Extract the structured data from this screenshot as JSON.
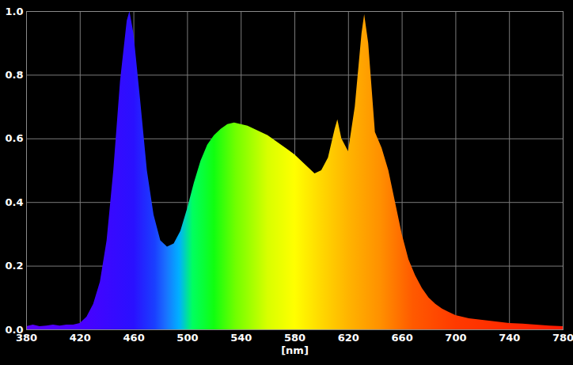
{
  "chart_data": {
    "type": "area",
    "x_label": "[nm]",
    "x": [
      380,
      385,
      390,
      395,
      400,
      405,
      410,
      415,
      420,
      425,
      430,
      435,
      440,
      445,
      450,
      455,
      457,
      460,
      465,
      470,
      475,
      480,
      485,
      490,
      495,
      500,
      505,
      510,
      515,
      520,
      525,
      530,
      535,
      540,
      545,
      550,
      555,
      560,
      565,
      570,
      575,
      580,
      585,
      590,
      595,
      600,
      605,
      610,
      612,
      615,
      620,
      625,
      630,
      632,
      635,
      640,
      645,
      650,
      655,
      660,
      665,
      670,
      675,
      680,
      685,
      690,
      695,
      700,
      710,
      720,
      730,
      740,
      750,
      760,
      770,
      780
    ],
    "values": [
      0.01,
      0.015,
      0.01,
      0.012,
      0.015,
      0.012,
      0.015,
      0.015,
      0.02,
      0.04,
      0.08,
      0.15,
      0.28,
      0.5,
      0.78,
      0.97,
      1.0,
      0.93,
      0.72,
      0.5,
      0.36,
      0.28,
      0.26,
      0.27,
      0.31,
      0.38,
      0.46,
      0.53,
      0.58,
      0.61,
      0.63,
      0.645,
      0.65,
      0.645,
      0.64,
      0.63,
      0.62,
      0.61,
      0.595,
      0.58,
      0.565,
      0.55,
      0.53,
      0.51,
      0.49,
      0.5,
      0.54,
      0.63,
      0.66,
      0.6,
      0.56,
      0.7,
      0.93,
      0.99,
      0.9,
      0.62,
      0.57,
      0.5,
      0.4,
      0.3,
      0.22,
      0.17,
      0.13,
      0.1,
      0.08,
      0.065,
      0.055,
      0.045,
      0.035,
      0.03,
      0.025,
      0.02,
      0.018,
      0.015,
      0.012,
      0.01
    ],
    "xlim": [
      380,
      780
    ],
    "ylim": [
      0,
      1
    ],
    "xticks": [
      380,
      420,
      460,
      500,
      540,
      580,
      620,
      660,
      700,
      740,
      780
    ],
    "yticks": [
      {
        "value": 0,
        "label": "0.0"
      },
      0.2,
      0.4,
      0.6,
      0.8,
      {
        "value": 1,
        "label": "1.0"
      }
    ],
    "grid": true
  }
}
